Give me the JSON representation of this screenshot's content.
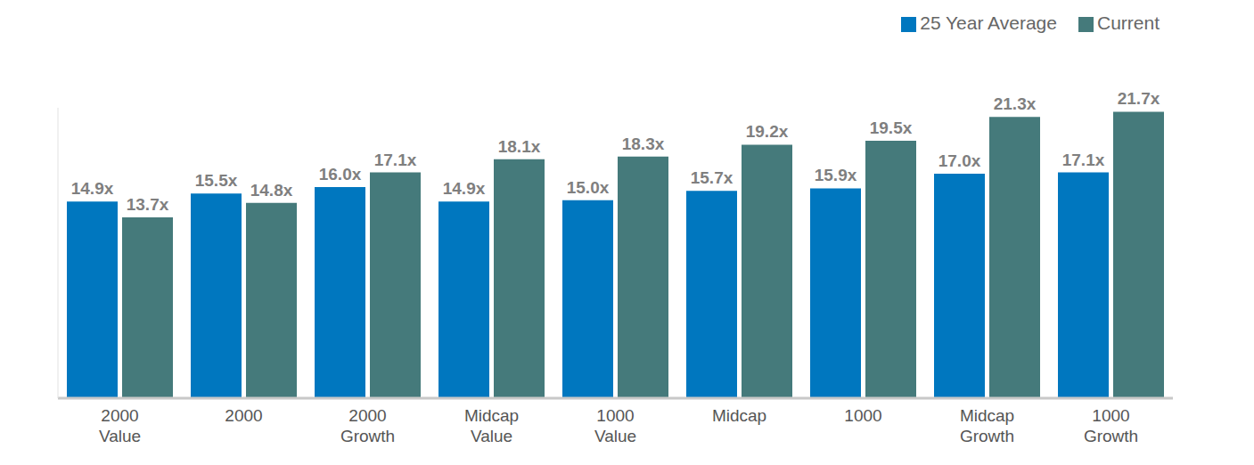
{
  "chart_data": {
    "type": "bar",
    "categories": [
      "2000 Value",
      "2000",
      "2000 Growth",
      "Midcap Value",
      "1000 Value",
      "Midcap",
      "1000",
      "Midcap Growth",
      "1000 Growth"
    ],
    "series": [
      {
        "name": "25 Year Average",
        "color": "#0077bf",
        "values": [
          14.9,
          15.5,
          16.0,
          14.9,
          15.0,
          15.7,
          15.9,
          17.0,
          17.1
        ],
        "value_labels": [
          "14.9x",
          "15.5x",
          "16.0x",
          "14.9x",
          "15.0x",
          "15.7x",
          "15.9x",
          "17.0x",
          "17.1x"
        ]
      },
      {
        "name": "Current",
        "color": "#457a7b",
        "values": [
          13.7,
          14.8,
          17.1,
          18.1,
          18.3,
          19.2,
          19.5,
          21.3,
          21.7
        ],
        "value_labels": [
          "13.7x",
          "14.8x",
          "17.1x",
          "18.1x",
          "18.3x",
          "19.2x",
          "19.5x",
          "21.3x",
          "21.7x"
        ]
      }
    ],
    "ylim": [
      0,
      22
    ],
    "data_labels": true,
    "tick_labels": "x",
    "legend": "top-right",
    "grid": false
  }
}
